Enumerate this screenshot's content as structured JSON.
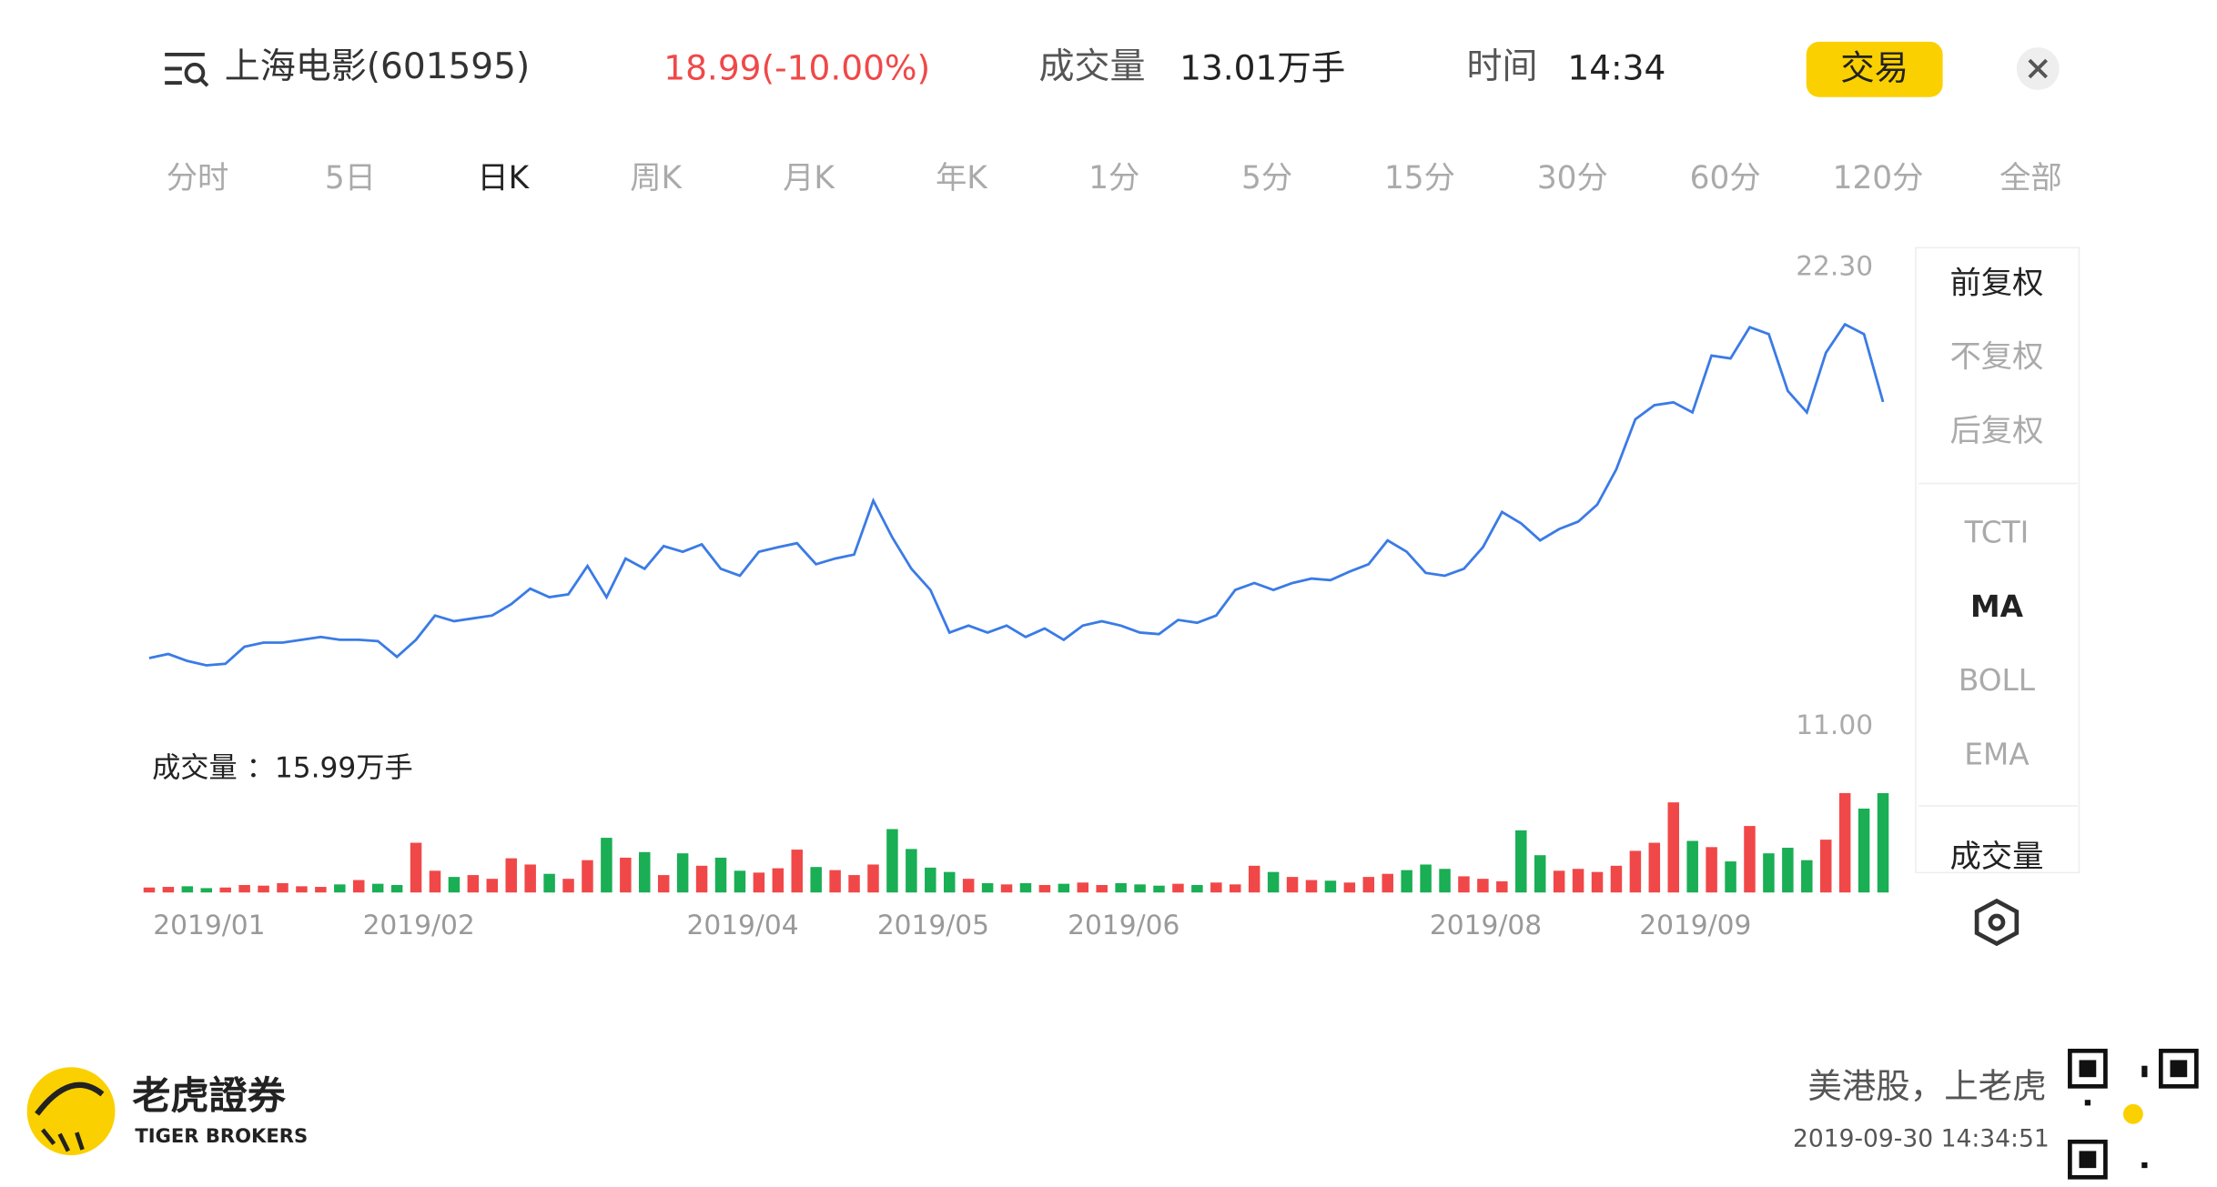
{
  "header": {
    "stock": "上海电影(601595)",
    "price_change": "18.99(-10.00%)",
    "volume_label": "成交量",
    "volume": "13.01万手",
    "time_label": "时间",
    "time": "14:34",
    "trade_button": "交易"
  },
  "tabs": [
    "分时",
    "5日",
    "日K",
    "周K",
    "月K",
    "年K",
    "1分",
    "5分",
    "15分",
    "30分",
    "60分",
    "120分",
    "全部"
  ],
  "active_tab": 2,
  "side_panel": {
    "adjust": [
      "前复权",
      "不复权",
      "后复权"
    ],
    "active_adjust": 0,
    "indicators": [
      "TCTI",
      "MA",
      "BOLL",
      "EMA"
    ],
    "active_indicator": 1,
    "volume": "成交量"
  },
  "chart_data": [
    {
      "type": "line",
      "color": "#3a7be6",
      "values": [
        12.68,
        12.78,
        12.61,
        12.5,
        12.54,
        12.96,
        13.06,
        13.06,
        13.13,
        13.2,
        13.13,
        13.13,
        13.1,
        12.71,
        13.13,
        13.73,
        13.59,
        13.66,
        13.73,
        14.01,
        14.39,
        14.18,
        14.25,
        14.95,
        14.18,
        15.13,
        14.88,
        15.44,
        15.3,
        15.48,
        14.88,
        14.71,
        15.3,
        15.41,
        15.51,
        14.99,
        15.13,
        15.23,
        16.56,
        15.65,
        14.88,
        14.36,
        13.31,
        13.48,
        13.31,
        13.48,
        13.2,
        13.41,
        13.13,
        13.48,
        13.59,
        13.48,
        13.31,
        13.27,
        13.62,
        13.55,
        13.73,
        14.36,
        14.53,
        14.36,
        14.53,
        14.64,
        14.6,
        14.81,
        14.99,
        15.58,
        15.3,
        14.78,
        14.71,
        14.88,
        15.41,
        16.28,
        16.0,
        15.58,
        15.86,
        16.04,
        16.46,
        17.33,
        18.56,
        18.91,
        18.98,
        18.73,
        20.13,
        20.06,
        20.83,
        20.66,
        19.26,
        18.73,
        20.2,
        20.9,
        20.66,
        18.99
      ],
      "xlim": [
        0,
        91
      ],
      "xticks": [
        {
          "value": 3,
          "label": "2019/01"
        },
        {
          "value": 14,
          "label": "2019/02"
        },
        {
          "value": 31,
          "label": "2019/04"
        },
        {
          "value": 41,
          "label": "2019/05"
        },
        {
          "value": 51,
          "label": "2019/06"
        },
        {
          "value": 70,
          "label": "2019/08"
        },
        {
          "value": 81,
          "label": "2019/09"
        }
      ],
      "ylim": [
        11,
        22.3
      ],
      "yticks": [
        {
          "value": 11,
          "label": "11.00"
        },
        {
          "value": 22.3,
          "label": "22.30"
        }
      ]
    },
    {
      "type": "bar",
      "title": "成交量 ：15.99万手",
      "up_color": "#f04848",
      "down_color": "#1aae55",
      "values": [
        0.8,
        0.9,
        1.0,
        0.7,
        0.8,
        1.2,
        1.1,
        1.5,
        1.0,
        0.9,
        1.3,
        2.0,
        1.4,
        1.2,
        8.0,
        3.5,
        2.5,
        2.8,
        2.2,
        5.5,
        4.5,
        3.0,
        2.2,
        5.2,
        8.8,
        5.6,
        6.5,
        2.8,
        6.3,
        4.3,
        5.6,
        3.5,
        3.2,
        3.9,
        6.9,
        4.1,
        3.6,
        2.8,
        4.5,
        10.2,
        7.0,
        4.0,
        3.3,
        2.2,
        1.5,
        1.3,
        1.5,
        1.2,
        1.4,
        1.6,
        1.2,
        1.5,
        1.3,
        1.1,
        1.4,
        1.2,
        1.6,
        1.3,
        4.3,
        3.3,
        2.5,
        2.0,
        1.9,
        1.6,
        2.5,
        3.0,
        3.6,
        4.5,
        3.8,
        2.6,
        2.2,
        1.8,
        10.0,
        6.0,
        3.5,
        3.8,
        3.3,
        4.3,
        6.7,
        8.0,
        14.5,
        8.3,
        7.3,
        5.0,
        10.7,
        6.3,
        7.2,
        5.2,
        8.5,
        16.0,
        13.5,
        15.99
      ],
      "ylim": [
        0,
        20
      ]
    }
  ],
  "footer": {
    "brand": "老虎證券",
    "brand_en": "TIGER BROKERS",
    "slogan": "美港股，上老虎",
    "timestamp": "2019-09-30 14:34:51"
  }
}
